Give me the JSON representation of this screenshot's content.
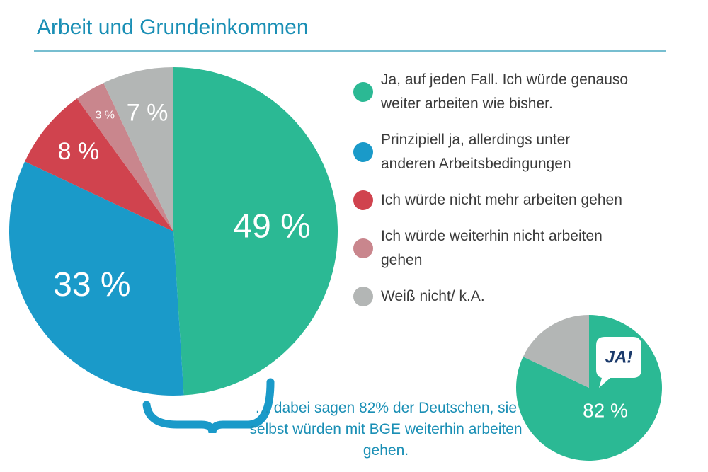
{
  "chart_data": [
    {
      "type": "pie",
      "title": "Arbeit und Grundeinkommen",
      "categories": [
        "Ja, auf jeden Fall. Ich würde genauso weiter arbeiten wie bisher.",
        "Prinzipiell ja, allerdings unter anderen Arbeitsbedingungen",
        "Ich würde nicht mehr arbeiten gehen",
        "Ich würde weiterhin nicht arbeiten gehen",
        "Weiß nicht/ k.A."
      ],
      "values": [
        49,
        33,
        8,
        3,
        7
      ],
      "value_labels": [
        "49 %",
        "33 %",
        "8 %",
        "3 %",
        "7 %"
      ],
      "colors": [
        "#2bb994",
        "#1a9ac9",
        "#d0434e",
        "#c9868d",
        "#b3b6b5"
      ],
      "annotation": "… dabei sagen 82% der Deutschen, sie selbst würden mit BGE weiterhin arbeiten gehen."
    },
    {
      "type": "pie",
      "values": [
        82,
        18
      ],
      "value_labels": [
        "82 %",
        null
      ],
      "colors": [
        "#2bb994",
        "#b3b6b5"
      ],
      "callout": "JA!"
    }
  ]
}
